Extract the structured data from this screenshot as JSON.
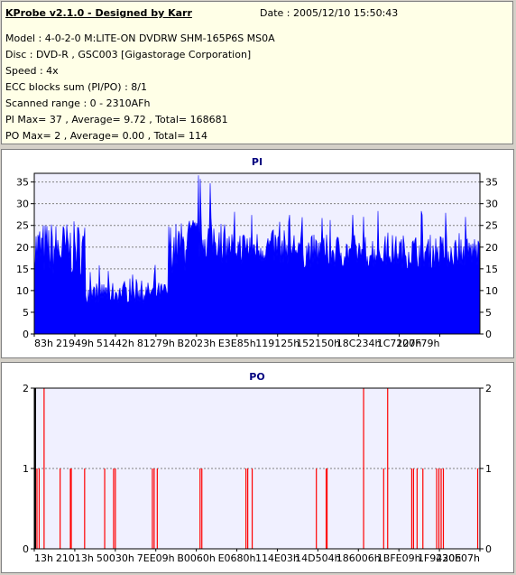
{
  "info": {
    "title": "KProbe v2.1.0 - Designed by Karr",
    "date": "Date : 2005/12/10 15:50:43",
    "lines": [
      "Model : 4-0-2-0 M:LITE-ON DVDRW SHM-165P6S MS0A",
      "Disc : DVD-R , GSC003 [Gigastorage Corporation]",
      "Speed : 4x",
      "ECC blocks sum (PI/PO) : 8/1",
      "Scanned range : 0 - 2310AFh",
      "PI Max= 37 , Average= 9.72 , Total= 168681",
      "PO Max= 2 , Average= 0.00 , Total= 114"
    ]
  },
  "colors": {
    "pi": "#0000ff",
    "po": "#ff0000",
    "plot_bg": "#f0f0ff",
    "grid": "#808080"
  },
  "chart_data": [
    {
      "type": "area",
      "title": "PI",
      "ylim": [
        0,
        37
      ],
      "yticks": [
        0,
        5,
        10,
        15,
        20,
        25,
        30,
        35
      ],
      "xlabels": [
        "83h",
        "21949h",
        "51442h",
        "81279h",
        "B2023h",
        "E3E85h",
        "119125h",
        "152150h",
        "18C234h",
        "1C7127h",
        "200F79h"
      ],
      "segments": [
        {
          "from": 0.0,
          "to": 0.115,
          "low": 13,
          "high": 26,
          "peak": 30
        },
        {
          "from": 0.115,
          "to": 0.3,
          "low": 7,
          "high": 12,
          "peak": 16
        },
        {
          "from": 0.3,
          "to": 0.34,
          "low": 14,
          "high": 26,
          "peak": 36
        },
        {
          "from": 0.34,
          "to": 0.42,
          "low": 17,
          "high": 27,
          "peak": 37
        },
        {
          "from": 0.42,
          "to": 0.6,
          "low": 16,
          "high": 24,
          "peak": 30
        },
        {
          "from": 0.6,
          "to": 1.0,
          "low": 15,
          "high": 23,
          "peak": 29
        }
      ]
    },
    {
      "type": "bar",
      "title": "PO",
      "ylim": [
        0,
        2
      ],
      "yticks": [
        0,
        1,
        2
      ],
      "xlabels": [
        "13h",
        "21013h",
        "50030h",
        "7EE09h",
        "B0060h",
        "E0680h",
        "114E03h",
        "14D504h",
        "186006h",
        "1BFE09h",
        "1F9420h",
        "230E07h"
      ],
      "spikes": [
        {
          "x": 0.006,
          "v": 1
        },
        {
          "x": 0.011,
          "v": 1
        },
        {
          "x": 0.022,
          "v": 2
        },
        {
          "x": 0.058,
          "v": 1
        },
        {
          "x": 0.081,
          "v": 1
        },
        {
          "x": 0.083,
          "v": 1
        },
        {
          "x": 0.113,
          "v": 1
        },
        {
          "x": 0.158,
          "v": 1
        },
        {
          "x": 0.178,
          "v": 1
        },
        {
          "x": 0.182,
          "v": 1
        },
        {
          "x": 0.265,
          "v": 1
        },
        {
          "x": 0.269,
          "v": 1
        },
        {
          "x": 0.276,
          "v": 1
        },
        {
          "x": 0.372,
          "v": 1
        },
        {
          "x": 0.376,
          "v": 1
        },
        {
          "x": 0.475,
          "v": 1
        },
        {
          "x": 0.479,
          "v": 1
        },
        {
          "x": 0.489,
          "v": 1
        },
        {
          "x": 0.633,
          "v": 1
        },
        {
          "x": 0.655,
          "v": 1
        },
        {
          "x": 0.657,
          "v": 1
        },
        {
          "x": 0.739,
          "v": 2
        },
        {
          "x": 0.784,
          "v": 1
        },
        {
          "x": 0.793,
          "v": 2
        },
        {
          "x": 0.847,
          "v": 1
        },
        {
          "x": 0.851,
          "v": 1
        },
        {
          "x": 0.859,
          "v": 1
        },
        {
          "x": 0.872,
          "v": 1
        },
        {
          "x": 0.903,
          "v": 1
        },
        {
          "x": 0.908,
          "v": 1
        },
        {
          "x": 0.913,
          "v": 1
        },
        {
          "x": 0.918,
          "v": 1
        },
        {
          "x": 0.995,
          "v": 1
        }
      ]
    }
  ]
}
